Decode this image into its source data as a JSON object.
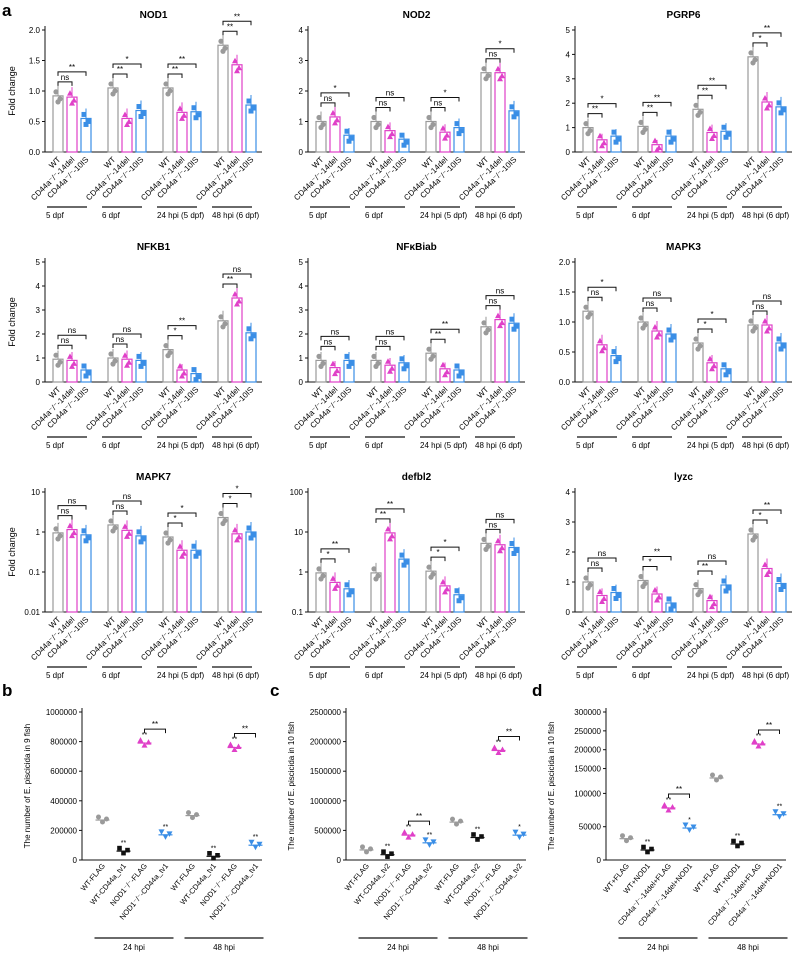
{
  "panel_letters": [
    "a",
    "b",
    "c",
    "d"
  ],
  "colors": {
    "wt": "#9a9a9a",
    "del": "#e040c8",
    "ins": "#3a8ee6",
    "black": "#111111"
  },
  "chart_data": [
    {
      "id": "NOD1",
      "panel": "a",
      "type": "bar",
      "title": "NOD1",
      "ylabel": "Fold change",
      "ylim": [
        0,
        2.0
      ],
      "yticks": [
        "0.0",
        "0.5",
        "1.0",
        "1.5",
        "2.0"
      ],
      "ytick_values": [
        0,
        0.5,
        1,
        1.5,
        2
      ],
      "categories": [
        "WT",
        "CD44a⁻/⁻-14del",
        "CD44a⁻/⁻-10IS"
      ],
      "groups": [
        "5 dpf",
        "6 dpf",
        "24 hpi (5 dpf)",
        "48 hpi (6 dpf)"
      ],
      "values": [
        [
          0.92,
          0.9,
          0.55
        ],
        [
          1.05,
          0.55,
          0.68
        ],
        [
          1.05,
          0.65,
          0.66
        ],
        [
          1.75,
          1.43,
          0.77
        ]
      ],
      "sig": [
        [
          "ns",
          "**"
        ],
        [
          "**",
          "*"
        ],
        [
          "**",
          "**"
        ],
        [
          "**",
          "**"
        ]
      ]
    },
    {
      "id": "NOD2",
      "panel": "a",
      "type": "bar",
      "title": "NOD2",
      "ylabel": "",
      "ylim": [
        0,
        4
      ],
      "yticks": [
        "0",
        "1",
        "2",
        "3",
        "4"
      ],
      "ytick_values": [
        0,
        1,
        2,
        3,
        4
      ],
      "categories": [
        "WT",
        "CD44a⁻/⁻-14del",
        "CD44a⁻/⁻-10IS"
      ],
      "groups": [
        "5 dpf",
        "6 dpf",
        "24 hpi (5 dpf)",
        "48 hpi (6 dpf)"
      ],
      "values": [
        [
          1.0,
          1.15,
          0.55
        ],
        [
          1.0,
          0.7,
          0.42
        ],
        [
          1.0,
          0.65,
          0.8
        ],
        [
          2.6,
          2.6,
          1.35
        ]
      ],
      "sig": [
        [
          "ns",
          "*"
        ],
        [
          "ns",
          "ns"
        ],
        [
          "ns",
          "*"
        ],
        [
          "ns",
          "*"
        ]
      ]
    },
    {
      "id": "PGRP6",
      "panel": "a",
      "type": "bar",
      "title": "PGRP6",
      "ylabel": "",
      "ylim": [
        0,
        5
      ],
      "yticks": [
        "0",
        "1",
        "2",
        "3",
        "4",
        "5"
      ],
      "ytick_values": [
        0,
        1,
        2,
        3,
        4,
        5
      ],
      "categories": [
        "WT",
        "CD44a⁻/⁻-14del",
        "CD44a⁻/⁻-10IS"
      ],
      "groups": [
        "5 dpf",
        "6 dpf",
        "24 hpi (5 dpf)",
        "48 hpi (6 dpf)"
      ],
      "values": [
        [
          1.0,
          0.5,
          0.65
        ],
        [
          1.05,
          0.3,
          0.65
        ],
        [
          1.75,
          0.8,
          0.85
        ],
        [
          3.9,
          2.05,
          1.85
        ]
      ],
      "sig": [
        [
          "**",
          "*"
        ],
        [
          "**",
          "**"
        ],
        [
          "**",
          "**"
        ],
        [
          "*",
          "**"
        ]
      ]
    },
    {
      "id": "NFKB1",
      "panel": "a",
      "type": "bar",
      "title": "NFKB1",
      "ylabel": "Fold change",
      "ylim": [
        0,
        5
      ],
      "yticks": [
        "0",
        "1",
        "2",
        "3",
        "4",
        "5"
      ],
      "ytick_values": [
        0,
        1,
        2,
        3,
        4,
        5
      ],
      "categories": [
        "WT",
        "CD44a⁻/⁻-14del",
        "CD44a⁻/⁻-10IS"
      ],
      "groups": [
        "5 dpf",
        "6 dpf",
        "24 hpi (5 dpf)",
        "48 hpi (6 dpf)"
      ],
      "values": [
        [
          0.95,
          0.9,
          0.5
        ],
        [
          1.0,
          0.95,
          0.9
        ],
        [
          1.35,
          0.5,
          0.35
        ],
        [
          2.55,
          3.5,
          2.05
        ]
      ],
      "sig": [
        [
          "ns",
          "ns"
        ],
        [
          "ns",
          "ns"
        ],
        [
          "*",
          "**"
        ],
        [
          "**",
          "ns"
        ]
      ]
    },
    {
      "id": "NFkBiab",
      "panel": "a",
      "type": "bar",
      "title": "NFκBiab",
      "ylabel": "",
      "ylim": [
        0,
        5
      ],
      "yticks": [
        "0",
        "1",
        "2",
        "3",
        "4",
        "5"
      ],
      "ytick_values": [
        0,
        1,
        2,
        3,
        4,
        5
      ],
      "categories": [
        "WT",
        "CD44a⁻/⁻-14del",
        "CD44a⁻/⁻-10IS"
      ],
      "groups": [
        "5 dpf",
        "6 dpf",
        "24 hpi (5 dpf)",
        "48 hpi (6 dpf)"
      ],
      "values": [
        [
          0.9,
          0.6,
          0.9
        ],
        [
          0.9,
          0.7,
          0.8
        ],
        [
          1.2,
          0.55,
          0.5
        ],
        [
          2.3,
          2.6,
          2.45
        ]
      ],
      "sig": [
        [
          "ns",
          "ns"
        ],
        [
          "ns",
          "ns"
        ],
        [
          "**",
          "**"
        ],
        [
          "ns",
          "ns"
        ]
      ]
    },
    {
      "id": "MAPK3",
      "panel": "a",
      "type": "bar",
      "title": "MAPK3",
      "ylabel": "",
      "ylim": [
        0,
        2.0
      ],
      "yticks": [
        "0.0",
        "0.5",
        "1.0",
        "1.5",
        "2.0"
      ],
      "ytick_values": [
        0,
        0.5,
        1,
        1.5,
        2
      ],
      "categories": [
        "WT",
        "CD44a⁻/⁻-14del",
        "CD44a⁻/⁻-10IS"
      ],
      "groups": [
        "5 dpf",
        "6 dpf",
        "24 hpi (5 dpf)",
        "48 hpi (6 dpf)"
      ],
      "values": [
        [
          1.18,
          0.62,
          0.44
        ],
        [
          1.0,
          0.85,
          0.8
        ],
        [
          0.65,
          0.32,
          0.22
        ],
        [
          0.95,
          0.95,
          0.65
        ]
      ],
      "sig": [
        [
          "ns",
          "*"
        ],
        [
          "ns",
          "ns"
        ],
        [
          "*",
          "*"
        ],
        [
          "ns",
          "ns"
        ]
      ]
    },
    {
      "id": "MAPK7",
      "panel": "a",
      "type": "bar",
      "scale": "log",
      "title": "MAPK7",
      "ylabel": "Fold change",
      "ylim": [
        0.01,
        10
      ],
      "yticks": [
        "0.01",
        "0.1",
        "1",
        "10"
      ],
      "ytick_values": [
        0.01,
        0.1,
        1,
        10
      ],
      "categories": [
        "WT",
        "CD44a⁻/⁻-14del",
        "CD44a⁻/⁻-10IS"
      ],
      "groups": [
        "5 dpf",
        "6 dpf",
        "24 hpi (5 dpf)",
        "48 hpi (6 dpf)"
      ],
      "values": [
        [
          0.95,
          1.15,
          0.85
        ],
        [
          1.5,
          1.1,
          0.8
        ],
        [
          0.75,
          0.35,
          0.35
        ],
        [
          2.3,
          0.9,
          1.0
        ]
      ],
      "sig": [
        [
          "ns",
          "ns"
        ],
        [
          "ns",
          "ns"
        ],
        [
          "*",
          "*"
        ],
        [
          "*",
          "*"
        ]
      ]
    },
    {
      "id": "defbl2",
      "panel": "a",
      "type": "bar",
      "scale": "log",
      "title": "defbl2",
      "ylabel": "",
      "ylim": [
        0.1,
        100
      ],
      "yticks": [
        "0.1",
        "1",
        "10",
        "100"
      ],
      "ytick_values": [
        0.1,
        1,
        10,
        100
      ],
      "categories": [
        "WT",
        "CD44a⁻/⁻-14del",
        "CD44a⁻/⁻-10IS"
      ],
      "groups": [
        "5 dpf",
        "6 dpf",
        "24 hpi (5 dpf)",
        "48 hpi (6 dpf)"
      ],
      "values": [
        [
          0.95,
          0.55,
          0.38
        ],
        [
          0.95,
          9.5,
          2.1
        ],
        [
          1.05,
          0.45,
          0.27
        ],
        [
          5.2,
          4.8,
          4.1
        ]
      ],
      "sig": [
        [
          "*",
          "**"
        ],
        [
          "**",
          "**"
        ],
        [
          "*",
          "*"
        ],
        [
          "ns",
          "ns"
        ]
      ]
    },
    {
      "id": "lyzc",
      "panel": "a",
      "type": "bar",
      "title": "lyzc",
      "ylabel": "",
      "ylim": [
        0,
        4
      ],
      "yticks": [
        "0",
        "1",
        "2",
        "3",
        "4"
      ],
      "ytick_values": [
        0,
        1,
        2,
        3,
        4
      ],
      "categories": [
        "WT",
        "CD44a⁻/⁻-14del",
        "CD44a⁻/⁻-10IS"
      ],
      "groups": [
        "5 dpf",
        "6 dpf",
        "24 hpi (5 dpf)",
        "48 hpi (6 dpf)"
      ],
      "values": [
        [
          1.0,
          0.55,
          0.65
        ],
        [
          1.05,
          0.6,
          0.3
        ],
        [
          0.78,
          0.38,
          0.9
        ],
        [
          2.6,
          1.45,
          0.95
        ]
      ],
      "sig": [
        [
          "ns",
          "ns"
        ],
        [
          "*",
          "**"
        ],
        [
          "**",
          "ns"
        ],
        [
          "*",
          "**"
        ]
      ]
    },
    {
      "id": "b",
      "panel": "b",
      "type": "scatter",
      "ylabel": "The number of E. piscicida in 9 fish",
      "ylim": [
        0,
        1000000
      ],
      "yticks": [
        "0",
        "200000",
        "400000",
        "600000",
        "800000",
        "1000000"
      ],
      "ytick_values": [
        0,
        200000,
        400000,
        600000,
        800000,
        1000000
      ],
      "categories": [
        "WT-FLAG",
        "WT-CD44a_tv1",
        "NOD1⁻/⁻-FLAG",
        "NOD1⁻/⁻-CD44a_tv1",
        "WT-FLAG",
        "WT-CD44a_tv1",
        "NOD1⁻/⁻-FLAG",
        "NOD1⁻/⁻-CD44a_tv1"
      ],
      "groups": [
        "24 hpi",
        "48 hpi"
      ],
      "values": [
        270000,
        60000,
        790000,
        170000,
        300000,
        25000,
        760000,
        100000
      ],
      "stars": [
        "",
        "**",
        "**",
        "**",
        "",
        "**",
        "**",
        "**"
      ],
      "brackets": [
        [
          2,
          3,
          "**"
        ],
        [
          6,
          7,
          "**"
        ]
      ]
    },
    {
      "id": "c",
      "panel": "c",
      "type": "scatter",
      "ylabel": "The number of E. piscicida in 10 fish",
      "ylim": [
        0,
        2500000
      ],
      "yticks": [
        "0",
        "500000",
        "1000000",
        "1500000",
        "2000000",
        "2500000"
      ],
      "ytick_values": [
        0,
        500000,
        1000000,
        1500000,
        2000000,
        2500000
      ],
      "categories": [
        "WT-FLAG",
        "WT-CD44a_tv2",
        "NOD1⁻/⁻-FLAG",
        "NOD1⁻/⁻-CD44a_tv2",
        "WT-FLAG",
        "WT-CD44a_tv2",
        "NOD1⁻/⁻-FLAG",
        "NOD1⁻/⁻-CD44a_tv2"
      ],
      "groups": [
        "24 hpi",
        "48 hpi"
      ],
      "values": [
        170000,
        90000,
        420000,
        290000,
        640000,
        380000,
        1850000,
        420000
      ],
      "stars": [
        "",
        "**",
        "**",
        "**",
        "",
        "**",
        "**",
        "*"
      ],
      "brackets": [
        [
          2,
          3,
          "**"
        ],
        [
          6,
          7,
          "**"
        ]
      ]
    },
    {
      "id": "d",
      "panel": "d",
      "type": "scatter",
      "ylabel": "The number of E. piscicida in 10 fish",
      "yticks": [
        "0",
        "50000",
        "100000",
        "150000",
        "200000",
        "250000",
        "300000"
      ],
      "ytick_values": [
        0,
        50000,
        100000,
        150000,
        200000,
        250000,
        300000
      ],
      "categories": [
        "WT+FLAG",
        "WT+NOD1",
        "CD44a⁻/⁻-14del+FLAG",
        "CD44a⁻/⁻-14del+NOD1",
        "WT+FLAG",
        "WT+NOD1",
        "CD44a⁻/⁻-14del+FLAG",
        "CD44a⁻/⁻-14del+NOD1"
      ],
      "groups": [
        "24 hpi",
        "48 hpi"
      ],
      "values": [
        32000,
        15000,
        78000,
        48000,
        125000,
        24000,
        215000,
        68000
      ],
      "stars": [
        "",
        "**",
        "**",
        "*",
        "",
        "**",
        "**",
        "**"
      ],
      "brackets": [
        [
          2,
          3,
          "**"
        ],
        [
          6,
          7,
          "**"
        ]
      ]
    }
  ]
}
